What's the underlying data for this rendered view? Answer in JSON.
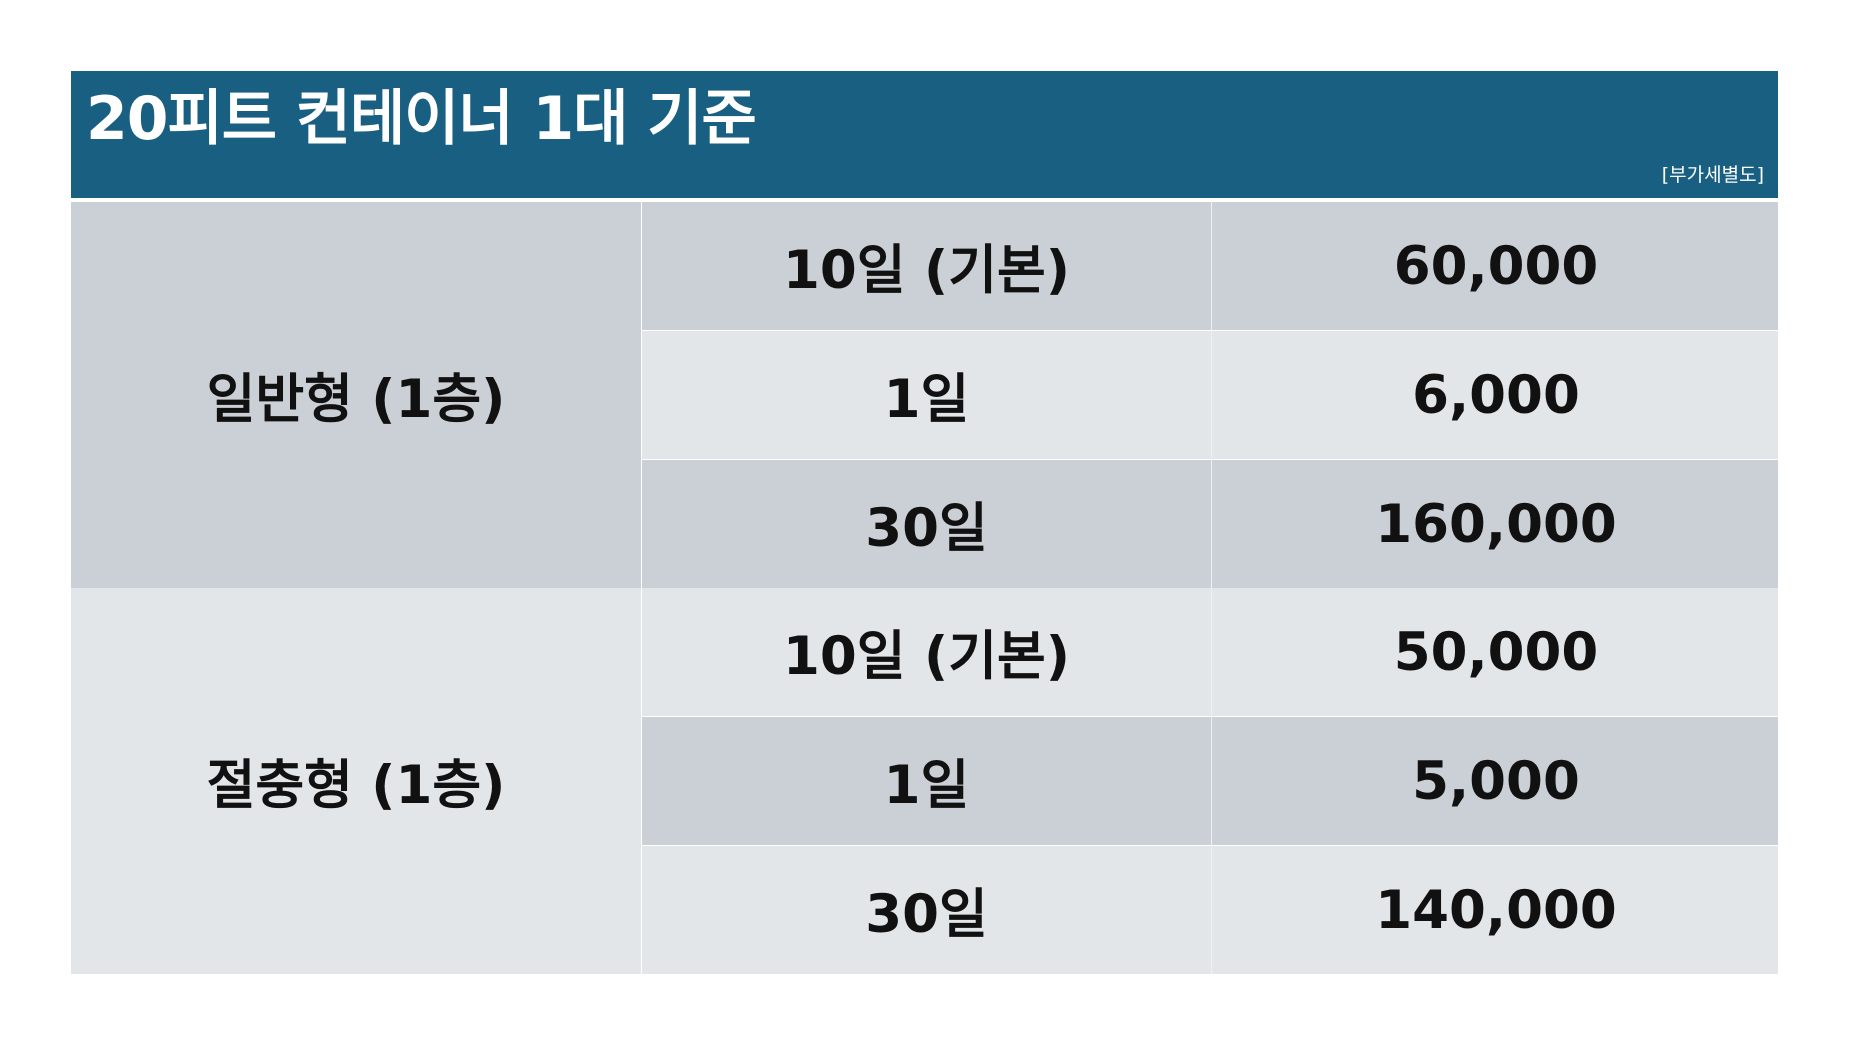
{
  "header": {
    "title": "20피트 컨테이너 1대 기준",
    "note": "[부가세별도]"
  },
  "groups": [
    {
      "name": "일반형 (1층)",
      "rows": [
        {
          "period": "10일 (기본)",
          "price": "60,000"
        },
        {
          "period": "1일",
          "price": "6,000"
        },
        {
          "period": "30일",
          "price": "160,000"
        }
      ]
    },
    {
      "name": "절충형 (1층)",
      "rows": [
        {
          "period": "10일 (기본)",
          "price": "50,000"
        },
        {
          "period": "1일",
          "price": "5,000"
        },
        {
          "period": "30일",
          "price": "140,000"
        }
      ]
    }
  ],
  "colors": {
    "header_bg": "#185f82",
    "row_dark": "#cbd0d6",
    "row_light": "#e3e6e9",
    "text": "#111111"
  }
}
